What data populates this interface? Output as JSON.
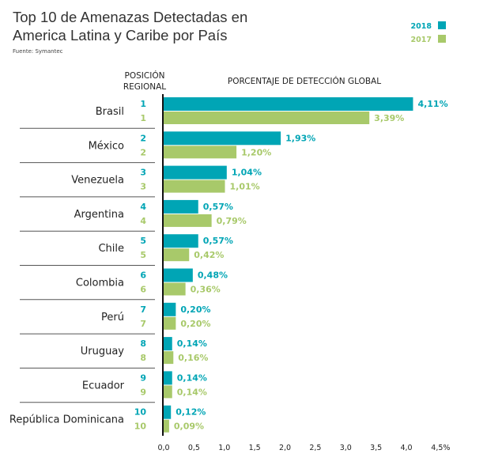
{
  "title_line1": "Top 10 de Amenazas Detectadas en",
  "title_line2": "America Latina y Caribe por País",
  "source": "Fuente: Symantec",
  "colors": {
    "2018": "#00a5b5",
    "2017": "#a8c96a"
  },
  "chart_data": {
    "type": "bar",
    "orientation": "horizontal",
    "ylabel": "POSICIÓN REGIONAL",
    "xlabel": "PORCENTAJE DE DETECCIÓN GLOBAL",
    "xlim": [
      0,
      4.5
    ],
    "x_ticks": [
      "0,0",
      "0,5",
      "1,0",
      "1,5",
      "2,0",
      "2,5",
      "3,0",
      "3,5",
      "4,0",
      "4,5%"
    ],
    "legend": "top-right",
    "categories": [
      "Brasil",
      "México",
      "Venezuela",
      "Argentina",
      "Chile",
      "Colombia",
      "Perú",
      "Uruguay",
      "Ecuador",
      "República Dominicana"
    ],
    "series": [
      {
        "name": "2018",
        "rank": [
          "1",
          "2",
          "3",
          "4",
          "5",
          "6",
          "7",
          "8",
          "9",
          "10"
        ],
        "values": [
          4.11,
          1.93,
          1.04,
          0.57,
          0.57,
          0.48,
          0.2,
          0.14,
          0.14,
          0.12
        ],
        "labels": [
          "4,11%",
          "1,93%",
          "1,04%",
          "0,57%",
          "0,57%",
          "0,48%",
          "0,20%",
          "0,14%",
          "0,14%",
          "0,12%"
        ]
      },
      {
        "name": "2017",
        "rank": [
          "1",
          "2",
          "3",
          "4",
          "5",
          "6",
          "7",
          "8",
          "9",
          "10"
        ],
        "values": [
          3.39,
          1.2,
          1.01,
          0.79,
          0.42,
          0.36,
          0.2,
          0.16,
          0.14,
          0.09
        ],
        "labels": [
          "3,39%",
          "1,20%",
          "1,01%",
          "0,79%",
          "0,42%",
          "0,36%",
          "0,20%",
          "0,16%",
          "0,14%",
          "0,09%"
        ]
      }
    ]
  }
}
